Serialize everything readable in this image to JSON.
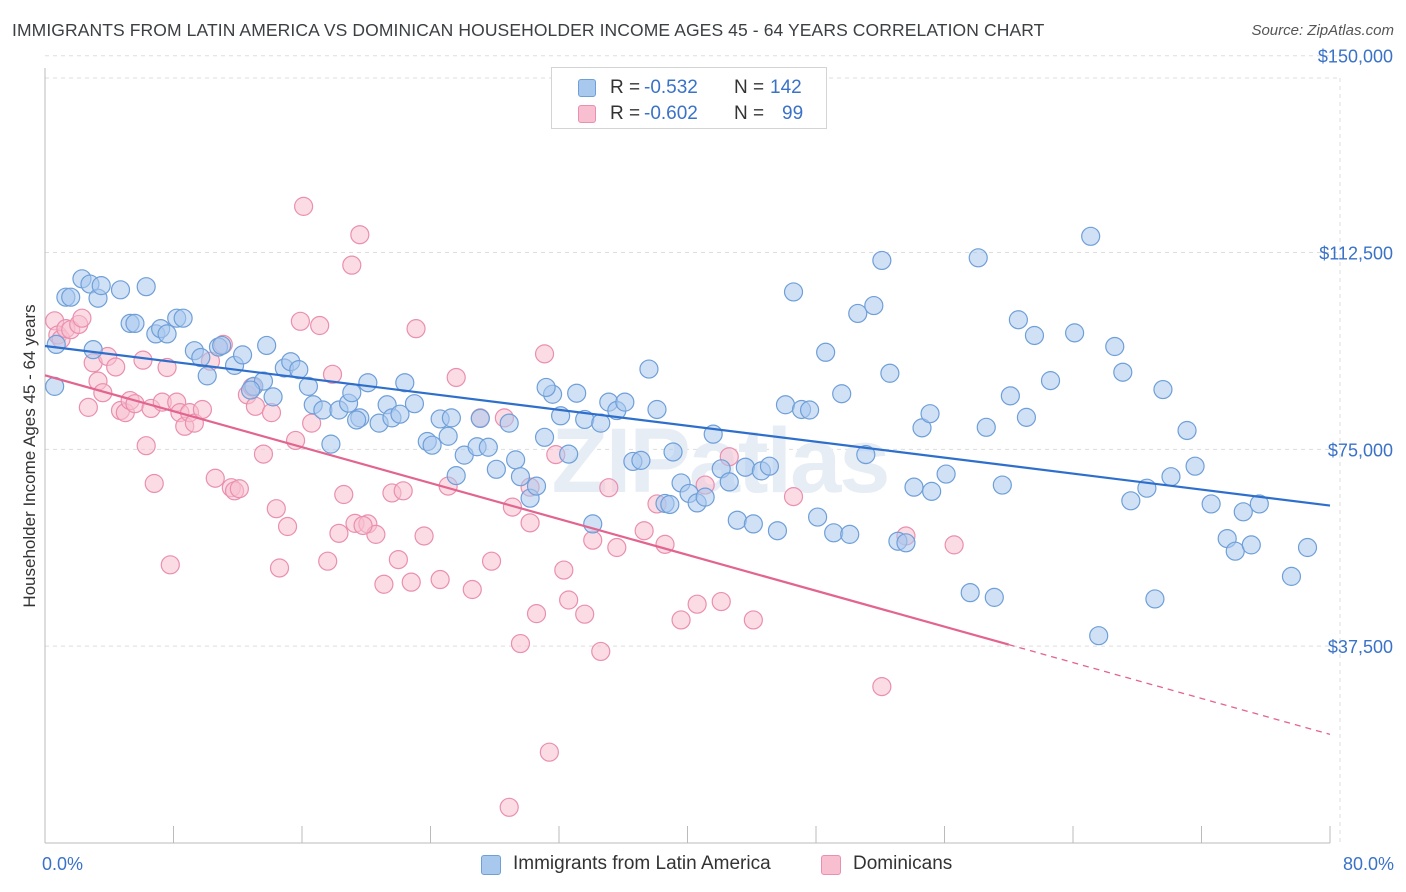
{
  "header": {
    "title": "IMMIGRANTS FROM LATIN AMERICA VS DOMINICAN HOUSEHOLDER INCOME AGES 45 - 64 YEARS CORRELATION CHART",
    "source": "Source: ZipAtlas.com"
  },
  "legend_top": [
    {
      "r_label": "R =",
      "r_value": "-0.532",
      "n_label": "N =",
      "n_value": "142"
    },
    {
      "r_label": "R =",
      "r_value": "-0.602",
      "n_label": "N =",
      "n_value": "99"
    }
  ],
  "legend_bottom": [
    "Immigrants from Latin America",
    "Dominicans"
  ],
  "watermark": "ZIPatlas",
  "colors": {
    "series1_fill": "#a9c8ee",
    "series1_stroke": "#6f9fd8",
    "series1_line": "#2e6fcc",
    "series2_fill": "#f7bfd0",
    "series2_stroke": "#ea8fae",
    "series2_line": "#e2648f",
    "axis_label": "#3a72c8",
    "grid": "#dddddd"
  },
  "chart_data": {
    "type": "scatter",
    "title": "IMMIGRANTS FROM LATIN AMERICA VS DOMINICAN HOUSEHOLDER INCOME AGES 45 - 64 YEARS CORRELATION CHART",
    "xlabel": "",
    "ylabel": "Householder Income Ages 45 - 64 years",
    "xlim": [
      0,
      80
    ],
    "ylim": [
      0,
      153000
    ],
    "x_tick_labels": [
      "0.0%",
      "80.0%"
    ],
    "y_ticks": [
      37500,
      75000,
      112500,
      150000
    ],
    "y_tick_labels": [
      "$37,500",
      "$75,000",
      "$112,500",
      "$150,000"
    ],
    "grid": true,
    "legend_placement": "top-center",
    "series": [
      {
        "name": "Immigrants from Latin America",
        "r": -0.532,
        "n": 142,
        "trend": {
          "x": [
            0,
            80
          ],
          "y": [
            94700,
            64300
          ],
          "style": "solid"
        },
        "points": [
          [
            0.6,
            87000
          ],
          [
            0.7,
            95000
          ],
          [
            1.3,
            104000
          ],
          [
            1.6,
            104000
          ],
          [
            2.3,
            107500
          ],
          [
            2.8,
            106500
          ],
          [
            3.3,
            103800
          ],
          [
            3.5,
            106200
          ],
          [
            4.7,
            105400
          ],
          [
            5.3,
            99000
          ],
          [
            5.6,
            99000
          ],
          [
            6.3,
            106000
          ],
          [
            6.9,
            97000
          ],
          [
            7.2,
            98000
          ],
          [
            7.6,
            97000
          ],
          [
            8.2,
            100000
          ],
          [
            8.6,
            100000
          ],
          [
            9.3,
            93800
          ],
          [
            10.1,
            89000
          ],
          [
            10.8,
            94500
          ],
          [
            11.0,
            94800
          ],
          [
            11.8,
            91000
          ],
          [
            12.3,
            93000
          ],
          [
            13.0,
            87000
          ],
          [
            13.6,
            88000
          ],
          [
            13.8,
            94800
          ],
          [
            14.2,
            85000
          ],
          [
            14.9,
            90500
          ],
          [
            15.3,
            91700
          ],
          [
            15.8,
            90200
          ],
          [
            16.4,
            87000
          ],
          [
            16.7,
            83500
          ],
          [
            17.3,
            82500
          ],
          [
            17.8,
            76000
          ],
          [
            18.3,
            82500
          ],
          [
            18.9,
            83800
          ],
          [
            19.1,
            85800
          ],
          [
            19.6,
            81000
          ],
          [
            20.1,
            87700
          ],
          [
            20.8,
            80000
          ],
          [
            21.3,
            83500
          ],
          [
            21.6,
            81000
          ],
          [
            22.1,
            81700
          ],
          [
            22.4,
            87700
          ],
          [
            23.0,
            83700
          ],
          [
            23.8,
            76500
          ],
          [
            24.1,
            75800
          ],
          [
            24.6,
            80800
          ],
          [
            25.1,
            77500
          ],
          [
            25.6,
            70000
          ],
          [
            26.1,
            73900
          ],
          [
            26.9,
            75500
          ],
          [
            27.1,
            80900
          ],
          [
            27.6,
            75400
          ],
          [
            28.1,
            71200
          ],
          [
            28.9,
            80000
          ],
          [
            29.3,
            73000
          ],
          [
            29.6,
            69800
          ],
          [
            30.2,
            65700
          ],
          [
            30.6,
            68000
          ],
          [
            31.1,
            77300
          ],
          [
            31.6,
            85500
          ],
          [
            32.1,
            81400
          ],
          [
            32.6,
            74100
          ],
          [
            33.1,
            85700
          ],
          [
            33.6,
            80700
          ],
          [
            34.1,
            60800
          ],
          [
            34.6,
            80000
          ],
          [
            35.1,
            84000
          ],
          [
            35.6,
            82400
          ],
          [
            36.1,
            84000
          ],
          [
            36.6,
            72700
          ],
          [
            37.1,
            72900
          ],
          [
            37.6,
            90300
          ],
          [
            38.1,
            82600
          ],
          [
            38.6,
            64700
          ],
          [
            38.9,
            64500
          ],
          [
            39.1,
            74500
          ],
          [
            39.6,
            68600
          ],
          [
            40.1,
            66600
          ],
          [
            40.6,
            64800
          ],
          [
            41.1,
            65900
          ],
          [
            41.6,
            77900
          ],
          [
            42.1,
            71300
          ],
          [
            42.6,
            68800
          ],
          [
            43.1,
            61500
          ],
          [
            43.6,
            71600
          ],
          [
            44.1,
            60800
          ],
          [
            44.6,
            70900
          ],
          [
            45.1,
            71800
          ],
          [
            45.6,
            59500
          ],
          [
            46.1,
            83500
          ],
          [
            46.6,
            105000
          ],
          [
            47.1,
            82600
          ],
          [
            47.6,
            82500
          ],
          [
            48.1,
            62100
          ],
          [
            48.6,
            93500
          ],
          [
            49.1,
            59100
          ],
          [
            49.6,
            85600
          ],
          [
            50.1,
            58800
          ],
          [
            50.6,
            100900
          ],
          [
            51.1,
            74000
          ],
          [
            51.6,
            102400
          ],
          [
            52.1,
            111000
          ],
          [
            52.6,
            89500
          ],
          [
            53.1,
            57500
          ],
          [
            53.6,
            57200
          ],
          [
            54.1,
            67800
          ],
          [
            54.6,
            79100
          ],
          [
            55.1,
            81800
          ],
          [
            56.1,
            70300
          ],
          [
            57.6,
            47700
          ],
          [
            58.1,
            111500
          ],
          [
            58.6,
            79200
          ],
          [
            59.1,
            46800
          ],
          [
            59.6,
            68200
          ],
          [
            60.1,
            85200
          ],
          [
            60.6,
            99700
          ],
          [
            61.1,
            81100
          ],
          [
            61.6,
            96700
          ],
          [
            62.6,
            88100
          ],
          [
            64.1,
            97200
          ],
          [
            65.1,
            115600
          ],
          [
            65.6,
            39500
          ],
          [
            66.6,
            94600
          ],
          [
            67.1,
            89700
          ],
          [
            67.6,
            65200
          ],
          [
            68.6,
            67600
          ],
          [
            69.1,
            46500
          ],
          [
            69.6,
            86400
          ],
          [
            71.1,
            78600
          ],
          [
            71.6,
            71800
          ],
          [
            72.6,
            64600
          ],
          [
            73.6,
            58000
          ],
          [
            74.1,
            55600
          ],
          [
            74.6,
            63100
          ],
          [
            75.1,
            56800
          ],
          [
            75.6,
            64600
          ],
          [
            77.6,
            50800
          ],
          [
            78.6,
            56300
          ],
          [
            3.0,
            94000
          ],
          [
            9.7,
            92500
          ],
          [
            12.8,
            86300
          ],
          [
            19.4,
            80600
          ],
          [
            25.3,
            81000
          ],
          [
            31.2,
            86800
          ],
          [
            55.2,
            67000
          ],
          [
            70.1,
            69800
          ]
        ]
      },
      {
        "name": "Dominicans",
        "r": -0.602,
        "n": 99,
        "trend": {
          "x": [
            0,
            60
          ],
          "y": [
            89100,
            37800
          ],
          "style": "solid"
        },
        "trend_extension": {
          "x": [
            60,
            80
          ],
          "y": [
            37800,
            20700
          ],
          "style": "dashed"
        },
        "points": [
          [
            0.6,
            99500
          ],
          [
            0.8,
            96800
          ],
          [
            1.0,
            96000
          ],
          [
            1.3,
            98000
          ],
          [
            1.6,
            97800
          ],
          [
            2.1,
            98800
          ],
          [
            2.3,
            100000
          ],
          [
            2.7,
            83000
          ],
          [
            3.0,
            91500
          ],
          [
            3.3,
            88000
          ],
          [
            3.6,
            85800
          ],
          [
            3.9,
            92700
          ],
          [
            4.4,
            90700
          ],
          [
            4.7,
            82400
          ],
          [
            5.0,
            82000
          ],
          [
            5.3,
            84300
          ],
          [
            5.6,
            83700
          ],
          [
            6.1,
            92000
          ],
          [
            6.3,
            75700
          ],
          [
            6.6,
            82800
          ],
          [
            6.8,
            68500
          ],
          [
            7.3,
            84000
          ],
          [
            7.6,
            90600
          ],
          [
            7.8,
            53000
          ],
          [
            8.2,
            84000
          ],
          [
            8.4,
            82000
          ],
          [
            8.7,
            79400
          ],
          [
            9.0,
            82000
          ],
          [
            9.3,
            80000
          ],
          [
            9.8,
            82600
          ],
          [
            10.3,
            91800
          ],
          [
            10.6,
            69500
          ],
          [
            11.1,
            95000
          ],
          [
            11.6,
            67700
          ],
          [
            11.8,
            67100
          ],
          [
            12.1,
            67500
          ],
          [
            12.6,
            85400
          ],
          [
            12.9,
            86900
          ],
          [
            13.1,
            83200
          ],
          [
            13.6,
            74100
          ],
          [
            14.1,
            82000
          ],
          [
            14.4,
            63700
          ],
          [
            14.6,
            52400
          ],
          [
            15.1,
            60300
          ],
          [
            15.6,
            76700
          ],
          [
            15.9,
            99400
          ],
          [
            16.1,
            121300
          ],
          [
            16.6,
            80000
          ],
          [
            17.1,
            98600
          ],
          [
            17.6,
            53700
          ],
          [
            17.9,
            89300
          ],
          [
            18.3,
            59000
          ],
          [
            18.6,
            66400
          ],
          [
            19.1,
            110100
          ],
          [
            19.3,
            60900
          ],
          [
            19.6,
            115900
          ],
          [
            20.1,
            60800
          ],
          [
            20.6,
            58800
          ],
          [
            21.1,
            49300
          ],
          [
            21.6,
            66700
          ],
          [
            22.0,
            54000
          ],
          [
            22.3,
            67100
          ],
          [
            22.8,
            49700
          ],
          [
            23.1,
            98000
          ],
          [
            23.6,
            58500
          ],
          [
            24.6,
            50200
          ],
          [
            25.1,
            68000
          ],
          [
            25.6,
            88700
          ],
          [
            26.6,
            48300
          ],
          [
            27.1,
            81000
          ],
          [
            27.8,
            53700
          ],
          [
            28.6,
            81000
          ],
          [
            29.1,
            64000
          ],
          [
            29.6,
            38000
          ],
          [
            30.2,
            61000
          ],
          [
            30.6,
            43700
          ],
          [
            31.1,
            93200
          ],
          [
            31.4,
            17300
          ],
          [
            31.8,
            74000
          ],
          [
            32.3,
            52000
          ],
          [
            32.6,
            46300
          ],
          [
            33.6,
            43600
          ],
          [
            34.1,
            57700
          ],
          [
            34.6,
            36500
          ],
          [
            35.1,
            67700
          ],
          [
            35.6,
            56300
          ],
          [
            37.3,
            59500
          ],
          [
            38.1,
            64600
          ],
          [
            38.6,
            56900
          ],
          [
            39.6,
            42500
          ],
          [
            40.6,
            45500
          ],
          [
            41.1,
            68200
          ],
          [
            42.1,
            46000
          ],
          [
            42.6,
            73600
          ],
          [
            44.1,
            42500
          ],
          [
            46.6,
            66000
          ],
          [
            52.1,
            29800
          ],
          [
            53.6,
            58500
          ],
          [
            56.6,
            56800
          ],
          [
            28.9,
            6800
          ],
          [
            19.8,
            60500
          ],
          [
            30.2,
            67800
          ]
        ]
      }
    ]
  }
}
